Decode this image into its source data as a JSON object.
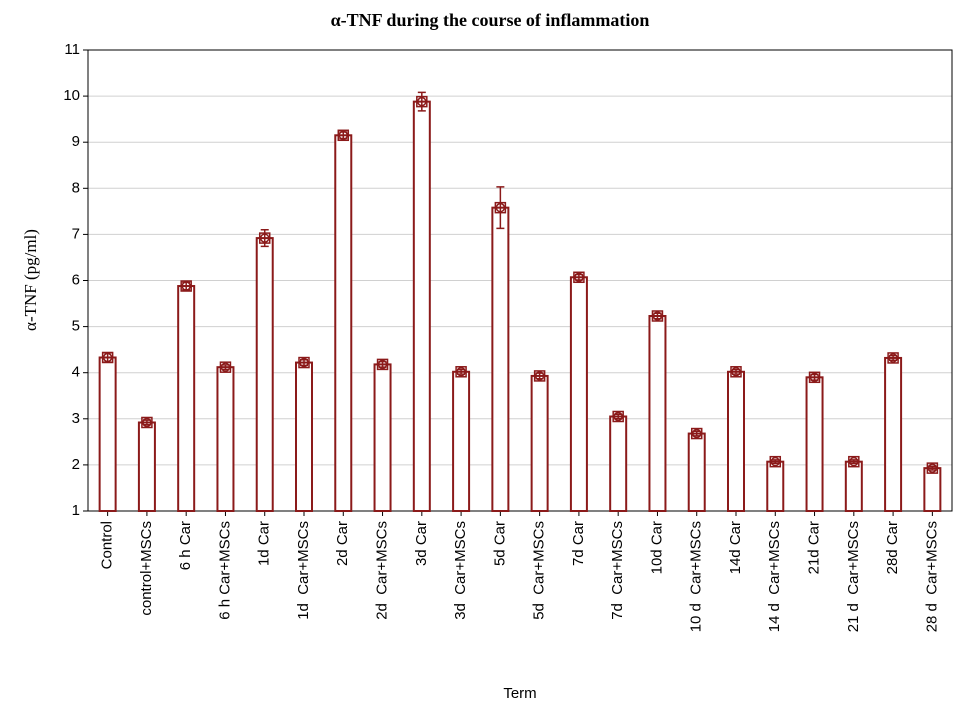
{
  "chart_data": {
    "type": "bar",
    "title": "α-TNF during the course of inflammation",
    "y_label": "α-TNF (pg/ml)",
    "x_label": "Term",
    "categories": [
      "Control",
      "control+MSCs",
      "6 h Car",
      "6 h Car+MSCs",
      "1d Car",
      "1d  Car+MSCs",
      "2d Car",
      "2d  Car+MSCs",
      "3d Car",
      "3d  Car+MSCs",
      "5d Car",
      "5d  Car+MSCs",
      "7d Car",
      "7d  Car+MSCs",
      "10d Car",
      "10 d  Car+MSCs",
      "14d Car",
      "14 d  Car+MSCs",
      "21d Car",
      "21 d  Car+MSCs",
      "28d Car",
      "28 d  Car+MSCs"
    ],
    "values": [
      4.33,
      2.92,
      5.88,
      4.12,
      6.92,
      4.22,
      9.15,
      4.18,
      9.88,
      4.02,
      7.58,
      3.93,
      6.07,
      3.05,
      5.23,
      2.68,
      4.02,
      2.07,
      3.9,
      2.07,
      4.32,
      1.93
    ],
    "errors": [
      0.1,
      0.05,
      0.08,
      0.05,
      0.18,
      0.06,
      0.07,
      0.06,
      0.2,
      0.05,
      0.45,
      0.06,
      0.06,
      0.05,
      0.06,
      0.05,
      0.05,
      0.04,
      0.06,
      0.04,
      0.05,
      0.04
    ],
    "color": "#8b1a1a",
    "ylim": [
      1,
      11
    ],
    "yticks": [
      1,
      2,
      3,
      4,
      5,
      6,
      7,
      8,
      9,
      10,
      11
    ],
    "grid": true
  }
}
